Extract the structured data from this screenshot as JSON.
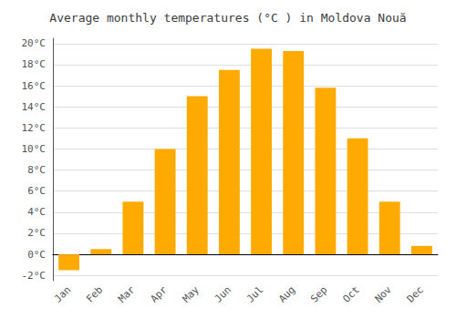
{
  "chart_data": {
    "type": "bar",
    "title": "Average monthly temperatures (°C ) in Moldova Nouă",
    "categories": [
      "Jan",
      "Feb",
      "Mar",
      "Apr",
      "May",
      "Jun",
      "Jul",
      "Aug",
      "Sep",
      "Oct",
      "Nov",
      "Dec"
    ],
    "values": [
      -1.5,
      0.5,
      5.0,
      10.0,
      15.0,
      17.5,
      19.5,
      19.3,
      15.8,
      11.0,
      5.0,
      0.8
    ],
    "color": "#FFAA00",
    "ylim": [
      -2.5,
      20.5
    ],
    "yticks": [
      {
        "value": -2,
        "label": "-2°C"
      },
      {
        "value": 0,
        "label": "0°C"
      },
      {
        "value": 2,
        "label": "2°C"
      },
      {
        "value": 4,
        "label": "4°C"
      },
      {
        "value": 6,
        "label": "6°C"
      },
      {
        "value": 8,
        "label": "8°C"
      },
      {
        "value": 10,
        "label": "10°C"
      },
      {
        "value": 12,
        "label": "12°C"
      },
      {
        "value": 14,
        "label": "14°C"
      },
      {
        "value": 16,
        "label": "16°C"
      },
      {
        "value": 18,
        "label": "18°C"
      },
      {
        "value": 20,
        "label": "20°C"
      }
    ],
    "grid": true
  }
}
